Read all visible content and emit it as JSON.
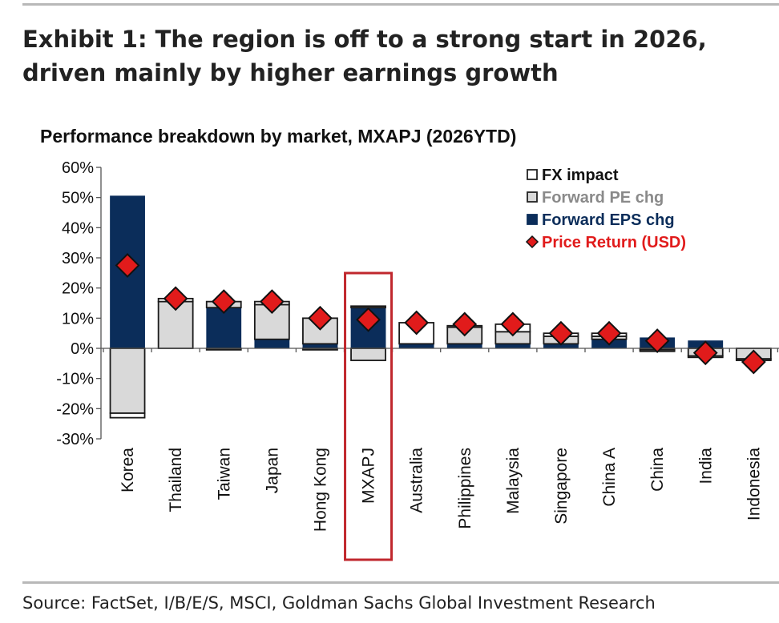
{
  "exhibit": {
    "title": "Exhibit 1: The region is off to a strong start in 2026, driven mainly by higher earnings growth",
    "source": "Source: FactSet, I/B/E/S, MSCI, Goldman Sachs Global Investment Research"
  },
  "colors": {
    "fx": "#ffffff",
    "pe": "#d9d9d9",
    "eps": "#0b2d5a",
    "price": "#e11b1b",
    "highlight": "#c0272d"
  },
  "chart_data": {
    "type": "bar",
    "stacked": true,
    "title": "Performance breakdown by market, MXAPJ (2026YTD)",
    "xlabel": "",
    "ylabel": "",
    "ylim": [
      -30,
      60
    ],
    "yticks": [
      "60%",
      "50%",
      "40%",
      "30%",
      "20%",
      "10%",
      "0%",
      "-10%",
      "-20%",
      "-30%"
    ],
    "ytick_values": [
      60,
      50,
      40,
      30,
      20,
      10,
      0,
      -10,
      -20,
      -30
    ],
    "categories": [
      "Korea",
      "Thailand",
      "Taiwan",
      "Japan",
      "Hong Kong",
      "MXAPJ",
      "Australia",
      "Philippines",
      "Malaysia",
      "Singapore",
      "China A",
      "China",
      "India",
      "Indonesia"
    ],
    "highlighted_category": "MXAPJ",
    "legend_position": "top-right",
    "series": [
      {
        "name": "Forward EPS chg",
        "key": "eps",
        "kind": "bar",
        "values": [
          50.5,
          0,
          13.5,
          3,
          1.5,
          13.5,
          1.5,
          1.5,
          1.5,
          1.5,
          3,
          3.5,
          2.5,
          0
        ]
      },
      {
        "name": "Forward PE chg",
        "key": "pe",
        "kind": "bar",
        "values": [
          -21.5,
          15.5,
          2,
          11.5,
          8.5,
          -4,
          0,
          5.5,
          4,
          2.5,
          1,
          -0.5,
          -2.5,
          -3.5
        ]
      },
      {
        "name": "FX impact",
        "key": "fx",
        "kind": "bar",
        "values": [
          -1.5,
          1,
          -0.5,
          1,
          -0.5,
          0.5,
          7,
          0.5,
          2.5,
          1,
          1,
          -0.5,
          -0.5,
          -0.5
        ]
      },
      {
        "name": "Price Return (USD)",
        "key": "price",
        "kind": "marker",
        "values": [
          27.5,
          16.5,
          15.5,
          15.5,
          10,
          9.5,
          8.5,
          8,
          8,
          5,
          5,
          2.5,
          -1.5,
          -4.5
        ]
      }
    ],
    "legend": [
      "FX impact",
      "Forward PE chg",
      "Forward EPS chg",
      "Price Return (USD)"
    ]
  }
}
